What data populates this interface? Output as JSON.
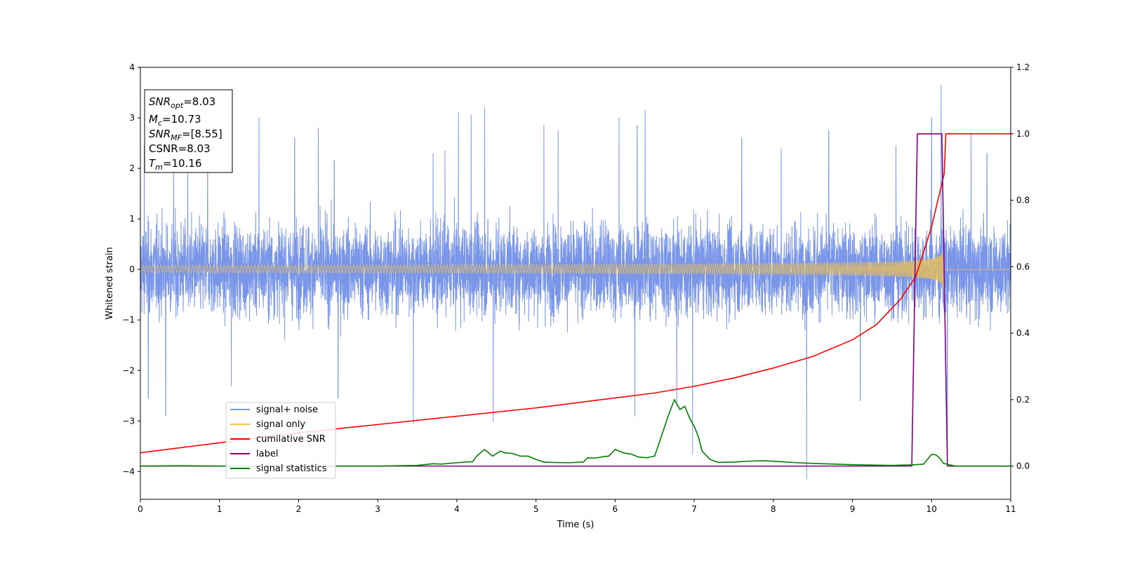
{
  "chart_data": {
    "type": "line",
    "xlabel": "Time (s)",
    "ylabel": "Whitened strain",
    "xlim": [
      0,
      11
    ],
    "ylim_left": [
      -4.55,
      4.0
    ],
    "ylim_right": [
      -0.1,
      1.2
    ],
    "x_ticks": [
      0,
      1,
      2,
      3,
      4,
      5,
      6,
      7,
      8,
      9,
      10,
      11
    ],
    "y_ticks_left": [
      -4,
      -3,
      -2,
      -1,
      0,
      1,
      2,
      3,
      4
    ],
    "y_ticks_right": [
      0.0,
      0.2,
      0.4,
      0.6,
      0.8,
      1.0,
      1.2
    ],
    "y_ticks_right_labels": [
      "0.0",
      "0.2",
      "0.4",
      "0.6",
      "0.8",
      "1.0",
      "1.2"
    ],
    "grid": false,
    "legend_position": "lower-left",
    "info_box": {
      "lines": [
        {
          "base": "SNR",
          "sub": "opt",
          "value": "=8.03"
        },
        {
          "base": "M",
          "sub": "c",
          "value": "=10.73"
        },
        {
          "base": "SNR",
          "sub": "MF",
          "value": "=[8.55]"
        },
        {
          "base": "CSNR",
          "sub": "",
          "value": "=8.03"
        },
        {
          "base": "T",
          "sub": "m",
          "value": "=10.16"
        }
      ]
    },
    "series": [
      {
        "name": "signal+ noise",
        "color": "#7a96e8",
        "axis": "left",
        "kind": "noise",
        "amplitude_envelope_approx": 1.8,
        "spikes": [
          [
            0.05,
            2.45
          ],
          [
            0.1,
            -2.55
          ],
          [
            0.32,
            -2.9
          ],
          [
            0.42,
            2.35
          ],
          [
            0.6,
            2.1
          ],
          [
            0.85,
            2.0
          ],
          [
            1.15,
            -2.3
          ],
          [
            1.5,
            3.0
          ],
          [
            1.95,
            2.6
          ],
          [
            2.25,
            2.8
          ],
          [
            2.45,
            2.15
          ],
          [
            2.5,
            -2.55
          ],
          [
            3.45,
            -3.05
          ],
          [
            3.7,
            2.3
          ],
          [
            3.85,
            2.35
          ],
          [
            4.02,
            3.1
          ],
          [
            4.18,
            3.05
          ],
          [
            4.35,
            3.2
          ],
          [
            4.46,
            -3.0
          ],
          [
            5.1,
            2.85
          ],
          [
            5.28,
            2.75
          ],
          [
            6.05,
            3.0
          ],
          [
            6.28,
            2.85
          ],
          [
            6.25,
            -2.9
          ],
          [
            6.38,
            3.15
          ],
          [
            6.78,
            -2.7
          ],
          [
            6.98,
            -3.65
          ],
          [
            7.6,
            2.6
          ],
          [
            8.1,
            2.4
          ],
          [
            8.42,
            -4.15
          ],
          [
            8.7,
            2.75
          ],
          [
            9.1,
            -2.6
          ],
          [
            9.55,
            2.45
          ],
          [
            10.12,
            3.65
          ],
          [
            10.2,
            -3.7
          ],
          [
            10.0,
            3.0
          ],
          [
            10.5,
            2.7
          ],
          [
            10.7,
            2.3
          ]
        ]
      },
      {
        "name": "signal only",
        "color": "#f0c050",
        "axis": "left",
        "kind": "chirp",
        "t_merger": 10.16,
        "amplitude_at_merger": 0.58
      },
      {
        "name": "cumilative SNR",
        "color": "#ff0000",
        "axis": "right",
        "x": [
          0,
          1,
          2,
          3,
          4,
          5,
          5.5,
          6,
          6.5,
          7,
          7.5,
          8,
          8.5,
          9,
          9.3,
          9.6,
          9.8,
          10.0,
          10.1,
          10.16,
          10.18,
          11
        ],
        "y": [
          0.04,
          0.07,
          0.1,
          0.125,
          0.15,
          0.175,
          0.19,
          0.205,
          0.22,
          0.24,
          0.265,
          0.295,
          0.33,
          0.38,
          0.425,
          0.5,
          0.57,
          0.72,
          0.82,
          0.88,
          1.0,
          1.0
        ]
      },
      {
        "name": "label",
        "color": "#800080",
        "axis": "right",
        "x": [
          0,
          9.75,
          9.82,
          10.13,
          10.2,
          11
        ],
        "y": [
          0,
          0,
          1,
          1,
          0,
          0
        ]
      },
      {
        "name": "signal statistics",
        "color": "#008000",
        "axis": "right",
        "x": [
          0,
          0.5,
          1,
          1.5,
          2,
          2.5,
          3,
          3.5,
          3.7,
          3.8,
          3.9,
          4.0,
          4.1,
          4.2,
          4.25,
          4.35,
          4.45,
          4.55,
          4.6,
          4.7,
          4.8,
          4.9,
          5.0,
          5.1,
          5.2,
          5.4,
          5.6,
          5.65,
          5.75,
          5.85,
          5.92,
          6.0,
          6.1,
          6.2,
          6.3,
          6.4,
          6.5,
          6.6,
          6.67,
          6.75,
          6.82,
          6.88,
          6.95,
          7.0,
          7.05,
          7.1,
          7.2,
          7.3,
          7.5,
          7.7,
          7.9,
          8.1,
          8.3,
          8.5,
          9.0,
          9.5,
          9.8,
          9.9,
          10.0,
          10.05,
          10.1,
          10.15,
          10.3,
          11
        ],
        "y": [
          0.0,
          0.001,
          0.0,
          0.0,
          0.0,
          0.0,
          0.0,
          0.002,
          0.007,
          0.006,
          0.008,
          0.01,
          0.012,
          0.013,
          0.03,
          0.05,
          0.03,
          0.045,
          0.04,
          0.038,
          0.03,
          0.03,
          0.02,
          0.012,
          0.011,
          0.01,
          0.012,
          0.025,
          0.024,
          0.028,
          0.03,
          0.05,
          0.04,
          0.036,
          0.027,
          0.025,
          0.03,
          0.1,
          0.15,
          0.2,
          0.17,
          0.18,
          0.14,
          0.12,
          0.09,
          0.045,
          0.02,
          0.011,
          0.012,
          0.015,
          0.016,
          0.013,
          0.01,
          0.008,
          0.004,
          0.002,
          0.004,
          0.006,
          0.035,
          0.034,
          0.025,
          0.008,
          0.0,
          0.0
        ]
      }
    ]
  }
}
